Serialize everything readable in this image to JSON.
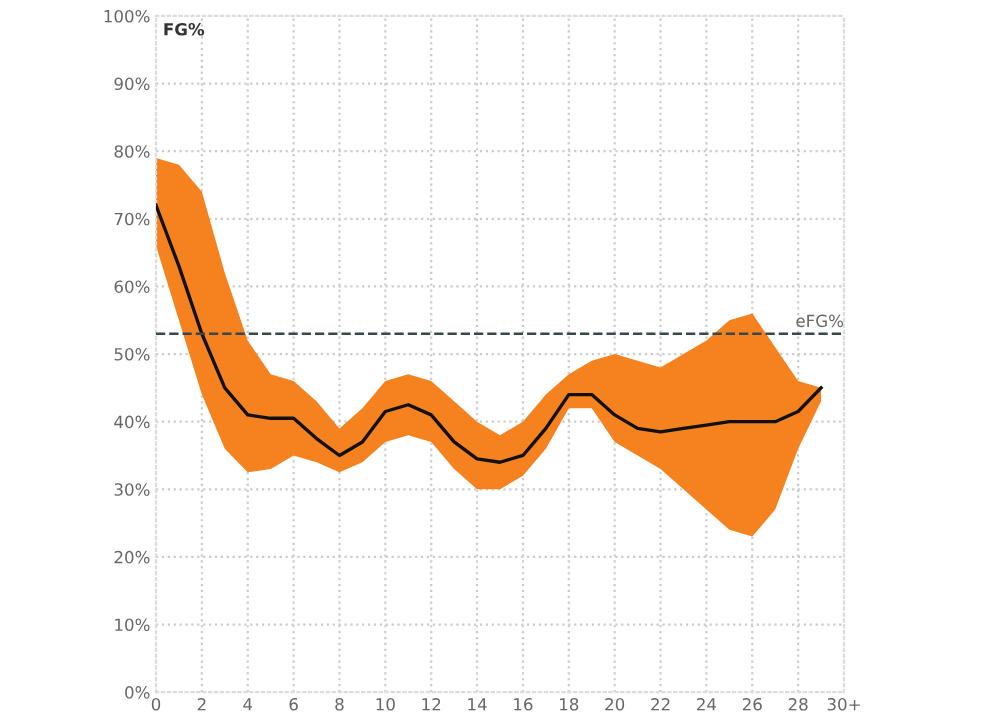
{
  "chart_data": {
    "type": "line",
    "ylabel": "FG%",
    "xlim": [
      0,
      30
    ],
    "xticks": [
      0,
      2,
      4,
      6,
      8,
      10,
      12,
      14,
      16,
      18,
      20,
      22,
      24,
      26,
      28,
      {
        "value": 30,
        "label": "30+"
      }
    ],
    "ylim": [
      0,
      100
    ],
    "yticks": [
      {
        "value": 0,
        "label": "0%"
      },
      {
        "value": 10,
        "label": "10%"
      },
      {
        "value": 20,
        "label": "20%"
      },
      {
        "value": 30,
        "label": "30%"
      },
      {
        "value": 40,
        "label": "40%"
      },
      {
        "value": 50,
        "label": "50%"
      },
      {
        "value": 60,
        "label": "60%"
      },
      {
        "value": 70,
        "label": "70%"
      },
      {
        "value": 80,
        "label": "80%"
      },
      {
        "value": 90,
        "label": "90%"
      },
      {
        "value": 100,
        "label": "100%"
      }
    ],
    "grid": true,
    "series": [
      {
        "color": "#111111",
        "x": [
          0,
          1,
          2,
          3,
          4,
          5,
          6,
          7,
          8,
          9,
          10,
          11,
          12,
          13,
          14,
          15,
          16,
          17,
          18,
          19,
          20,
          21,
          22,
          23,
          24,
          25,
          26,
          27,
          28,
          29
        ],
        "values": [
          72,
          63,
          53,
          45,
          41,
          40.5,
          40.5,
          37.5,
          35,
          37,
          41.5,
          42.5,
          41,
          37,
          34.5,
          34,
          35,
          39,
          44,
          44,
          41,
          39,
          38.5,
          39,
          39.5,
          40,
          40,
          40,
          41.5,
          45
        ],
        "lower": [
          66,
          55,
          44,
          36,
          32.5,
          33,
          35,
          34,
          32.5,
          34,
          37,
          38,
          37,
          33,
          30,
          30,
          32,
          36,
          42,
          42,
          37,
          35,
          33,
          30,
          27,
          24,
          23,
          27,
          36,
          43
        ],
        "upper": [
          79,
          78,
          74,
          62,
          52,
          47,
          46,
          43,
          39,
          42,
          46,
          47,
          46,
          43,
          40,
          38,
          40,
          44,
          47,
          49,
          50,
          49,
          48,
          50,
          52,
          55,
          56,
          51,
          46,
          45
        ]
      }
    ],
    "ref_lines": [
      {
        "axis": "y",
        "value": 53,
        "label": "eFG%",
        "color": "#37474f",
        "line_style": "dashed"
      }
    ]
  }
}
